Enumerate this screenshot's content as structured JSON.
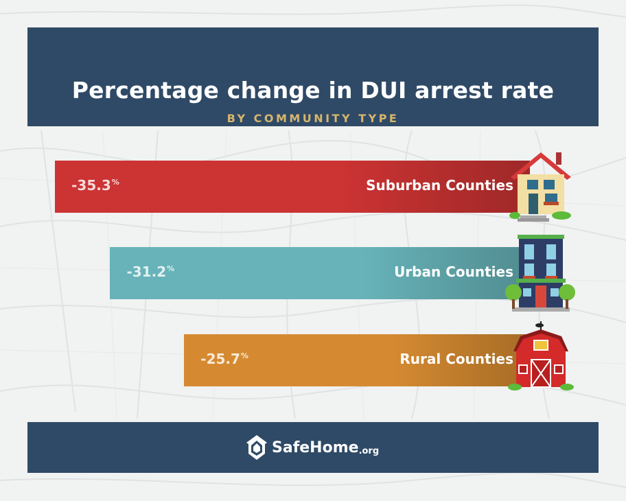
{
  "header": {
    "title": "Percentage change in DUI arrest rate",
    "subtitle": "BY COMMUNITY TYPE"
  },
  "chart_data": {
    "type": "bar",
    "orientation": "horizontal",
    "title": "Percentage change in DUI arrest rate",
    "subtitle": "BY COMMUNITY TYPE",
    "categories": [
      "Suburban Counties",
      "Urban Counties",
      "Rural Counties"
    ],
    "values": [
      -35.3,
      -31.2,
      -25.7
    ],
    "value_labels": [
      "-35.3",
      "-31.2",
      "-25.7"
    ],
    "unit": "%",
    "colors": [
      "#cc3333",
      "#67b3b9",
      "#d58a31"
    ],
    "icons": [
      "suburban-house-icon",
      "urban-building-icon",
      "rural-barn-icon"
    ]
  },
  "footer": {
    "brand": "SafeHome",
    "brand_suffix": ".org",
    "logo_icon": "shield-house-icon"
  }
}
